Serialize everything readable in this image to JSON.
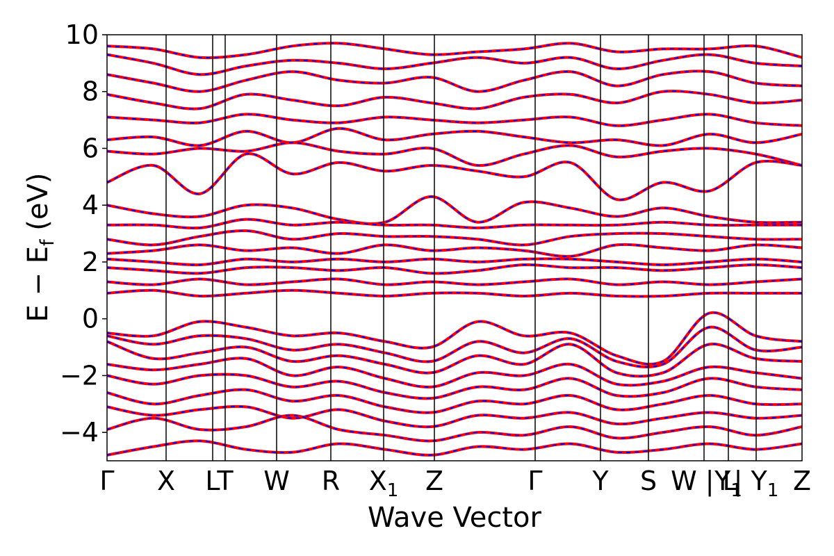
{
  "chart_data": {
    "type": "line",
    "title": "",
    "xlabel": "Wave Vector",
    "ylabel": "E − E",
    "ylabel_sub": "f",
    "ylabel_unit": " (eV)",
    "ylim": [
      -5,
      10
    ],
    "y_ticks": [
      -4,
      -2,
      0,
      2,
      4,
      6,
      8,
      10
    ],
    "x_range": [
      0,
      1
    ],
    "high_symmetry_points": [
      {
        "label": "Γ",
        "sub": "",
        "x": 0.0
      },
      {
        "label": "X",
        "sub": "",
        "x": 0.085
      },
      {
        "label": "L",
        "sub": "",
        "x": 0.152
      },
      {
        "label": "T",
        "sub": "",
        "x": 0.17
      },
      {
        "label": "W",
        "sub": "",
        "x": 0.244
      },
      {
        "label": "R",
        "sub": "",
        "x": 0.322
      },
      {
        "label": "X",
        "sub": "1",
        "x": 0.398
      },
      {
        "label": "Z",
        "sub": "",
        "x": 0.471
      },
      {
        "label": "Γ",
        "sub": "",
        "x": 0.616
      },
      {
        "label": "Y",
        "sub": "",
        "x": 0.71
      },
      {
        "label": "S",
        "sub": "",
        "x": 0.779
      },
      {
        "label": "W | L",
        "sub": "",
        "x": 0.859
      },
      {
        "label": "| Y",
        "sub": "1",
        "x": 0.934
      },
      {
        "label": "Z",
        "sub": "",
        "x": 1.0
      }
    ],
    "x_label_extra": {
      "label": "Y",
      "sub": "1",
      "x": 0.894
    },
    "grid": false,
    "legend": "none",
    "series": [
      {
        "style": "solid",
        "color": "#ff0000"
      },
      {
        "style": "dashed",
        "color": "#0000ff"
      }
    ],
    "bands": [
      [
        9.6,
        9.5,
        9.2,
        9.3,
        9.6,
        9.7,
        9.5,
        9.3,
        9.4,
        9.5,
        9.7,
        9.4,
        9.5,
        9.5,
        9.6,
        9.2
      ],
      [
        9.3,
        9.0,
        8.6,
        8.9,
        9.1,
        9.0,
        8.8,
        9.0,
        9.2,
        9.0,
        9.2,
        8.8,
        9.1,
        9.3,
        9.0,
        8.9
      ],
      [
        8.6,
        8.3,
        8.0,
        8.4,
        8.7,
        8.4,
        8.3,
        8.5,
        8.0,
        8.4,
        8.7,
        8.2,
        8.6,
        8.7,
        8.3,
        8.2
      ],
      [
        7.9,
        7.6,
        7.4,
        7.9,
        7.7,
        7.5,
        7.8,
        7.6,
        7.4,
        7.8,
        7.9,
        7.6,
        8.0,
        7.9,
        7.6,
        7.7
      ],
      [
        7.1,
        7.0,
        6.9,
        7.2,
        7.0,
        6.9,
        7.1,
        7.0,
        6.9,
        7.0,
        7.1,
        6.8,
        7.0,
        7.2,
        6.9,
        6.8
      ],
      [
        6.3,
        6.4,
        6.1,
        6.6,
        6.2,
        6.7,
        6.3,
        6.5,
        6.6,
        6.4,
        6.2,
        6.3,
        6.1,
        6.5,
        6.2,
        6.5
      ],
      [
        5.9,
        5.8,
        6.0,
        5.9,
        6.2,
        5.9,
        5.8,
        6.0,
        5.4,
        5.8,
        6.1,
        5.7,
        5.9,
        6.0,
        5.8,
        5.4
      ],
      [
        4.8,
        5.4,
        4.4,
        5.8,
        5.1,
        5.5,
        5.2,
        5.4,
        5.2,
        5.0,
        5.5,
        4.2,
        4.8,
        4.5,
        5.5,
        5.4
      ],
      [
        4.0,
        3.7,
        3.6,
        4.0,
        3.9,
        3.5,
        3.4,
        4.3,
        3.4,
        4.1,
        3.9,
        3.6,
        3.9,
        3.6,
        3.4,
        3.4
      ],
      [
        3.3,
        3.3,
        3.2,
        3.5,
        3.3,
        3.4,
        3.3,
        3.3,
        3.2,
        3.3,
        3.3,
        3.3,
        3.4,
        3.3,
        3.3,
        3.3
      ],
      [
        2.8,
        2.6,
        2.9,
        3.1,
        2.8,
        3.0,
        2.9,
        2.9,
        2.8,
        2.6,
        2.9,
        3.0,
        3.0,
        2.9,
        2.8,
        2.8
      ],
      [
        2.3,
        2.4,
        2.6,
        2.4,
        2.5,
        2.3,
        2.6,
        2.4,
        2.5,
        2.4,
        2.2,
        2.6,
        2.5,
        2.4,
        2.6,
        2.5
      ],
      [
        2.1,
        2.0,
        1.9,
        2.1,
        2.0,
        2.1,
        2.0,
        2.1,
        2.0,
        2.1,
        2.1,
        2.0,
        1.9,
        2.0,
        2.1,
        2.0
      ],
      [
        1.8,
        1.7,
        1.6,
        1.8,
        1.8,
        1.7,
        1.8,
        1.6,
        1.7,
        1.9,
        1.8,
        1.8,
        1.7,
        1.8,
        1.9,
        1.8
      ],
      [
        1.3,
        1.2,
        1.4,
        1.2,
        1.3,
        1.4,
        1.2,
        1.3,
        1.2,
        1.3,
        1.4,
        1.2,
        1.3,
        1.2,
        1.3,
        1.4
      ],
      [
        0.9,
        1.0,
        0.8,
        0.9,
        1.0,
        0.9,
        0.8,
        0.9,
        0.9,
        0.8,
        0.9,
        0.8,
        0.8,
        0.9,
        0.9,
        0.9
      ],
      [
        -0.5,
        -0.6,
        -0.1,
        -0.3,
        -0.6,
        -0.5,
        -0.8,
        -1.0,
        -0.1,
        -0.6,
        -0.5,
        -1.3,
        -1.5,
        0.2,
        -0.6,
        -0.8
      ],
      [
        -0.6,
        -0.9,
        -0.6,
        -0.7,
        -1.1,
        -0.9,
        -1.2,
        -1.5,
        -0.8,
        -1.2,
        -0.7,
        -1.5,
        -1.6,
        -0.3,
        -1.1,
        -1.0
      ],
      [
        -0.8,
        -1.4,
        -1.2,
        -1.0,
        -1.5,
        -1.3,
        -1.6,
        -1.9,
        -1.3,
        -1.6,
        -0.9,
        -1.9,
        -1.9,
        -0.9,
        -1.4,
        -1.5
      ],
      [
        -1.6,
        -1.8,
        -1.6,
        -1.4,
        -2.0,
        -1.7,
        -2.1,
        -2.4,
        -1.9,
        -2.0,
        -1.6,
        -2.3,
        -2.2,
        -1.7,
        -1.9,
        -2.1
      ],
      [
        -2.0,
        -2.3,
        -2.0,
        -2.0,
        -2.4,
        -2.2,
        -2.6,
        -2.8,
        -2.4,
        -2.5,
        -2.1,
        -2.7,
        -2.6,
        -2.1,
        -2.4,
        -2.5
      ],
      [
        -2.6,
        -3.0,
        -2.7,
        -2.5,
        -2.9,
        -2.7,
        -3.1,
        -3.3,
        -2.9,
        -3.0,
        -2.7,
        -3.2,
        -3.0,
        -2.7,
        -3.0,
        -3.0
      ],
      [
        -3.1,
        -3.4,
        -3.2,
        -3.1,
        -3.5,
        -3.2,
        -3.6,
        -3.8,
        -3.4,
        -3.5,
        -3.3,
        -3.7,
        -3.5,
        -3.3,
        -3.5,
        -3.4
      ],
      [
        -3.9,
        -3.5,
        -3.9,
        -3.8,
        -3.4,
        -3.9,
        -4.1,
        -4.3,
        -4.0,
        -4.1,
        -3.8,
        -4.2,
        -4.0,
        -3.8,
        -4.1,
        -3.8
      ],
      [
        -4.8,
        -4.5,
        -4.3,
        -4.6,
        -4.7,
        -4.4,
        -4.6,
        -4.8,
        -4.5,
        -4.6,
        -4.4,
        -4.7,
        -4.6,
        -4.4,
        -4.6,
        -4.4
      ]
    ]
  }
}
